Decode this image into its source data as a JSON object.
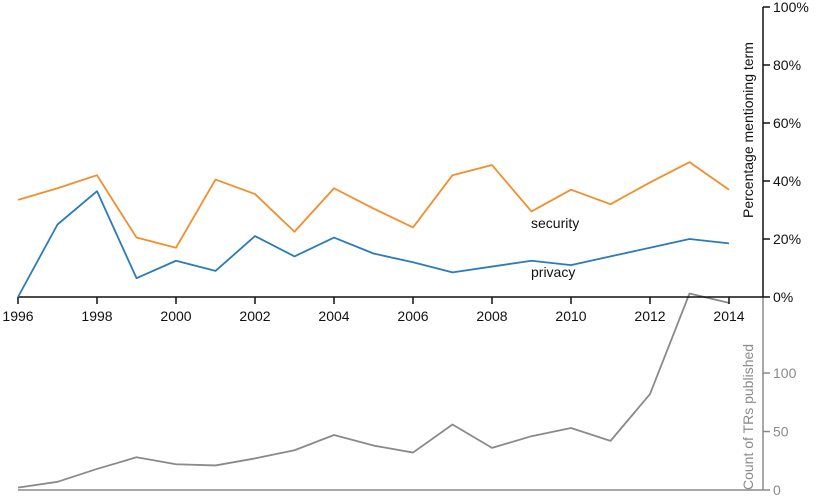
{
  "chart_data": [
    {
      "type": "line",
      "x": [
        1996,
        1997,
        1998,
        1999,
        2000,
        2001,
        2002,
        2003,
        2004,
        2005,
        2006,
        2007,
        2008,
        2009,
        2010,
        2011,
        2012,
        2013,
        2014
      ],
      "xticks": [
        "1996",
        "1998",
        "2000",
        "2002",
        "2004",
        "2006",
        "2008",
        "2010",
        "2012",
        "2014"
      ],
      "xtick_values": [
        1996,
        1998,
        2000,
        2002,
        2004,
        2006,
        2008,
        2010,
        2012,
        2014
      ],
      "series": [
        {
          "name": "security",
          "color": "#f28e2b",
          "values": [
            33.5,
            37.5,
            42,
            20.5,
            17,
            40.5,
            35.5,
            22.5,
            37.5,
            30.5,
            24,
            42,
            45.5,
            29.5,
            37,
            32,
            39.5,
            46.5,
            37
          ]
        },
        {
          "name": "privacy",
          "color": "#2b7bb9",
          "values": [
            0,
            25,
            36.5,
            6.5,
            12.5,
            9,
            21,
            14,
            20.5,
            15,
            12,
            8.5,
            10.5,
            12.5,
            11,
            14,
            17,
            20,
            18.5
          ]
        }
      ],
      "ylabel": "Percentage mentioning term",
      "yticks": [
        "0%",
        "20%",
        "40%",
        "60%",
        "80%",
        "100%"
      ],
      "ytick_values": [
        0,
        20,
        40,
        60,
        80,
        100
      ],
      "ylim": [
        0,
        100
      ],
      "grid": false,
      "legend": "inline labels"
    },
    {
      "type": "line",
      "x": [
        1996,
        1997,
        1998,
        1999,
        2000,
        2001,
        2002,
        2003,
        2004,
        2005,
        2006,
        2007,
        2008,
        2009,
        2010,
        2011,
        2012,
        2013,
        2014
      ],
      "series": [
        {
          "color": "#8a8a8a",
          "values": [
            2,
            7,
            18,
            28,
            22,
            21,
            27,
            34,
            47,
            38,
            32,
            56,
            36,
            46,
            53,
            42,
            82,
            168,
            160
          ]
        }
      ],
      "ylabel": "Count of TRs published",
      "yticks": [
        "0",
        "50",
        "100"
      ],
      "ytick_values": [
        0,
        50,
        100
      ],
      "ylim": [
        0,
        165
      ],
      "grid": false
    }
  ]
}
